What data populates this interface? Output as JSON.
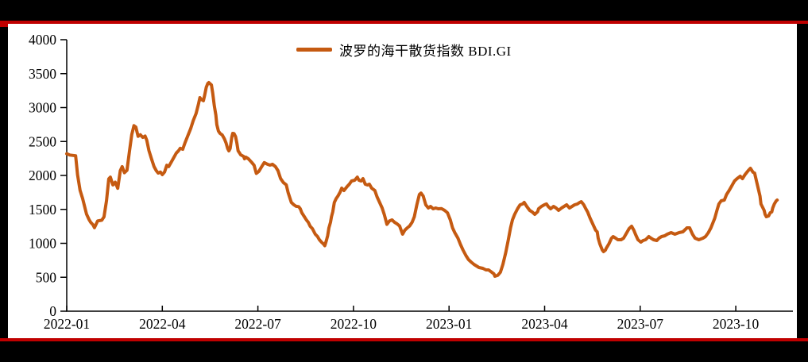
{
  "colors": {
    "frame_background": "#000000",
    "border_red": "#C00000",
    "panel_background": "#FFFFFF",
    "axis": "#000000",
    "text": "#000000",
    "series_orange": "#C55A11"
  },
  "legend": {
    "label": "波罗的海干散货指数 BDI.GI"
  },
  "chart_data": {
    "type": "line",
    "title": "",
    "xlabel": "",
    "ylabel": "",
    "grid": false,
    "legend_position": "top-center",
    "ylim": [
      0,
      4000
    ],
    "y_ticks": [
      0,
      500,
      1000,
      1500,
      2000,
      2500,
      3000,
      3500,
      4000
    ],
    "xlim_months": [
      0,
      22.8
    ],
    "x_unit": "months since 2022-01",
    "x_tick_months": [
      0,
      3,
      6,
      9,
      12,
      15,
      18,
      21
    ],
    "x_tick_labels": [
      "2022-01",
      "2022-04",
      "2022-07",
      "2022-10",
      "2023-01",
      "2023-04",
      "2023-07",
      "2023-10"
    ],
    "series": [
      {
        "name": "波罗的海干散货指数 BDI.GI",
        "color": "#C55A11",
        "points": [
          [
            0.0,
            2320
          ],
          [
            0.1,
            2300
          ],
          [
            0.28,
            2290
          ],
          [
            0.34,
            2010
          ],
          [
            0.42,
            1780
          ],
          [
            0.5,
            1660
          ],
          [
            0.62,
            1430
          ],
          [
            0.7,
            1350
          ],
          [
            0.75,
            1310
          ],
          [
            0.82,
            1275
          ],
          [
            0.87,
            1230
          ],
          [
            0.97,
            1330
          ],
          [
            1.1,
            1340
          ],
          [
            1.17,
            1390
          ],
          [
            1.25,
            1630
          ],
          [
            1.32,
            1950
          ],
          [
            1.37,
            1975
          ],
          [
            1.45,
            1860
          ],
          [
            1.52,
            1900
          ],
          [
            1.6,
            1810
          ],
          [
            1.68,
            2070
          ],
          [
            1.74,
            2130
          ],
          [
            1.81,
            2040
          ],
          [
            1.89,
            2075
          ],
          [
            1.97,
            2360
          ],
          [
            2.04,
            2600
          ],
          [
            2.11,
            2733
          ],
          [
            2.17,
            2712
          ],
          [
            2.24,
            2577
          ],
          [
            2.31,
            2600
          ],
          [
            2.39,
            2560
          ],
          [
            2.46,
            2580
          ],
          [
            2.51,
            2520
          ],
          [
            2.58,
            2365
          ],
          [
            2.66,
            2245
          ],
          [
            2.74,
            2130
          ],
          [
            2.81,
            2070
          ],
          [
            2.87,
            2035
          ],
          [
            2.94,
            2050
          ],
          [
            3.0,
            2012
          ],
          [
            3.07,
            2050
          ],
          [
            3.14,
            2150
          ],
          [
            3.2,
            2130
          ],
          [
            3.27,
            2187
          ],
          [
            3.34,
            2246
          ],
          [
            3.44,
            2330
          ],
          [
            3.51,
            2365
          ],
          [
            3.56,
            2400
          ],
          [
            3.64,
            2386
          ],
          [
            3.71,
            2480
          ],
          [
            3.81,
            2596
          ],
          [
            3.89,
            2690
          ],
          [
            3.97,
            2807
          ],
          [
            4.06,
            2912
          ],
          [
            4.13,
            3041
          ],
          [
            4.18,
            3146
          ],
          [
            4.22,
            3123
          ],
          [
            4.29,
            3100
          ],
          [
            4.33,
            3181
          ],
          [
            4.38,
            3298
          ],
          [
            4.43,
            3357
          ],
          [
            4.46,
            3368
          ],
          [
            4.54,
            3333
          ],
          [
            4.58,
            3216
          ],
          [
            4.63,
            3029
          ],
          [
            4.68,
            2889
          ],
          [
            4.71,
            2749
          ],
          [
            4.76,
            2655
          ],
          [
            4.81,
            2620
          ],
          [
            4.88,
            2596
          ],
          [
            4.95,
            2538
          ],
          [
            5.0,
            2480
          ],
          [
            5.05,
            2398
          ],
          [
            5.09,
            2363
          ],
          [
            5.13,
            2398
          ],
          [
            5.18,
            2561
          ],
          [
            5.21,
            2620
          ],
          [
            5.25,
            2618
          ],
          [
            5.3,
            2573
          ],
          [
            5.34,
            2480
          ],
          [
            5.38,
            2363
          ],
          [
            5.43,
            2328
          ],
          [
            5.46,
            2304
          ],
          [
            5.55,
            2281
          ],
          [
            5.58,
            2246
          ],
          [
            5.62,
            2269
          ],
          [
            5.7,
            2246
          ],
          [
            5.8,
            2195
          ],
          [
            5.88,
            2150
          ],
          [
            5.95,
            2030
          ],
          [
            6.03,
            2060
          ],
          [
            6.12,
            2130
          ],
          [
            6.2,
            2190
          ],
          [
            6.3,
            2165
          ],
          [
            6.38,
            2152
          ],
          [
            6.46,
            2165
          ],
          [
            6.55,
            2130
          ],
          [
            6.63,
            2070
          ],
          [
            6.71,
            1955
          ],
          [
            6.8,
            1895
          ],
          [
            6.89,
            1862
          ],
          [
            6.95,
            1745
          ],
          [
            7.05,
            1602
          ],
          [
            7.13,
            1567
          ],
          [
            7.2,
            1545
          ],
          [
            7.28,
            1540
          ],
          [
            7.33,
            1510
          ],
          [
            7.38,
            1450
          ],
          [
            7.46,
            1392
          ],
          [
            7.52,
            1345
          ],
          [
            7.58,
            1310
          ],
          [
            7.64,
            1251
          ],
          [
            7.71,
            1216
          ],
          [
            7.8,
            1134
          ],
          [
            7.87,
            1100
          ],
          [
            7.93,
            1053
          ],
          [
            8.0,
            1015
          ],
          [
            8.06,
            990
          ],
          [
            8.1,
            965
          ],
          [
            8.15,
            1041
          ],
          [
            8.19,
            1111
          ],
          [
            8.23,
            1228
          ],
          [
            8.28,
            1310
          ],
          [
            8.31,
            1392
          ],
          [
            8.35,
            1462
          ],
          [
            8.4,
            1602
          ],
          [
            8.46,
            1661
          ],
          [
            8.51,
            1696
          ],
          [
            8.58,
            1754
          ],
          [
            8.63,
            1813
          ],
          [
            8.7,
            1778
          ],
          [
            8.8,
            1836
          ],
          [
            8.87,
            1871
          ],
          [
            8.94,
            1918
          ],
          [
            9.04,
            1930
          ],
          [
            9.12,
            1976
          ],
          [
            9.17,
            1930
          ],
          [
            9.24,
            1918
          ],
          [
            9.3,
            1953
          ],
          [
            9.37,
            1871
          ],
          [
            9.44,
            1860
          ],
          [
            9.5,
            1871
          ],
          [
            9.57,
            1813
          ],
          [
            9.67,
            1778
          ],
          [
            9.74,
            1684
          ],
          [
            9.82,
            1602
          ],
          [
            9.9,
            1520
          ],
          [
            9.97,
            1420
          ],
          [
            10.05,
            1280
          ],
          [
            10.13,
            1330
          ],
          [
            10.21,
            1345
          ],
          [
            10.29,
            1310
          ],
          [
            10.37,
            1287
          ],
          [
            10.45,
            1255
          ],
          [
            10.54,
            1134
          ],
          [
            10.61,
            1193
          ],
          [
            10.69,
            1228
          ],
          [
            10.76,
            1255
          ],
          [
            10.84,
            1310
          ],
          [
            10.91,
            1392
          ],
          [
            10.99,
            1570
          ],
          [
            11.07,
            1720
          ],
          [
            11.12,
            1740
          ],
          [
            11.19,
            1696
          ],
          [
            11.27,
            1567
          ],
          [
            11.35,
            1521
          ],
          [
            11.42,
            1544
          ],
          [
            11.5,
            1509
          ],
          [
            11.58,
            1521
          ],
          [
            11.66,
            1509
          ],
          [
            11.76,
            1512
          ],
          [
            11.86,
            1485
          ],
          [
            11.95,
            1450
          ],
          [
            12.04,
            1345
          ],
          [
            12.11,
            1228
          ],
          [
            12.18,
            1158
          ],
          [
            12.28,
            1076
          ],
          [
            12.36,
            982
          ],
          [
            12.44,
            901
          ],
          [
            12.53,
            819
          ],
          [
            12.61,
            760
          ],
          [
            12.69,
            725
          ],
          [
            12.78,
            690
          ],
          [
            12.86,
            667
          ],
          [
            12.94,
            643
          ],
          [
            13.06,
            632
          ],
          [
            13.16,
            608
          ],
          [
            13.24,
            608
          ],
          [
            13.31,
            585
          ],
          [
            13.41,
            550
          ],
          [
            13.44,
            515
          ],
          [
            13.53,
            530
          ],
          [
            13.61,
            573
          ],
          [
            13.69,
            690
          ],
          [
            13.78,
            866
          ],
          [
            13.86,
            1053
          ],
          [
            13.93,
            1228
          ],
          [
            13.99,
            1345
          ],
          [
            14.06,
            1427
          ],
          [
            14.15,
            1509
          ],
          [
            14.23,
            1567
          ],
          [
            14.31,
            1580
          ],
          [
            14.36,
            1602
          ],
          [
            14.44,
            1544
          ],
          [
            14.53,
            1485
          ],
          [
            14.61,
            1462
          ],
          [
            14.69,
            1427
          ],
          [
            14.78,
            1465
          ],
          [
            14.81,
            1510
          ],
          [
            14.9,
            1544
          ],
          [
            14.99,
            1567
          ],
          [
            15.06,
            1580
          ],
          [
            15.11,
            1544
          ],
          [
            15.19,
            1509
          ],
          [
            15.28,
            1544
          ],
          [
            15.36,
            1520
          ],
          [
            15.44,
            1485
          ],
          [
            15.53,
            1521
          ],
          [
            15.61,
            1544
          ],
          [
            15.69,
            1567
          ],
          [
            15.78,
            1521
          ],
          [
            15.86,
            1544
          ],
          [
            15.94,
            1567
          ],
          [
            16.03,
            1580
          ],
          [
            16.1,
            1602
          ],
          [
            16.15,
            1614
          ],
          [
            16.23,
            1567
          ],
          [
            16.28,
            1521
          ],
          [
            16.35,
            1462
          ],
          [
            16.43,
            1368
          ],
          [
            16.52,
            1275
          ],
          [
            16.6,
            1193
          ],
          [
            16.65,
            1170
          ],
          [
            16.68,
            1076
          ],
          [
            16.73,
            994
          ],
          [
            16.78,
            936
          ],
          [
            16.81,
            901
          ],
          [
            16.85,
            877
          ],
          [
            16.91,
            901
          ],
          [
            16.93,
            924
          ],
          [
            17.02,
            994
          ],
          [
            17.1,
            1076
          ],
          [
            17.15,
            1099
          ],
          [
            17.23,
            1076
          ],
          [
            17.3,
            1053
          ],
          [
            17.4,
            1053
          ],
          [
            17.48,
            1076
          ],
          [
            17.55,
            1134
          ],
          [
            17.65,
            1216
          ],
          [
            17.73,
            1251
          ],
          [
            17.8,
            1193
          ],
          [
            17.85,
            1134
          ],
          [
            17.93,
            1053
          ],
          [
            18.02,
            1018
          ],
          [
            18.09,
            1041
          ],
          [
            18.17,
            1053
          ],
          [
            18.27,
            1099
          ],
          [
            18.34,
            1076
          ],
          [
            18.42,
            1053
          ],
          [
            18.52,
            1041
          ],
          [
            18.59,
            1076
          ],
          [
            18.67,
            1099
          ],
          [
            18.77,
            1111
          ],
          [
            18.85,
            1134
          ],
          [
            18.97,
            1158
          ],
          [
            19.09,
            1134
          ],
          [
            19.22,
            1158
          ],
          [
            19.34,
            1170
          ],
          [
            19.47,
            1228
          ],
          [
            19.55,
            1228
          ],
          [
            19.64,
            1134
          ],
          [
            19.72,
            1076
          ],
          [
            19.84,
            1053
          ],
          [
            19.97,
            1076
          ],
          [
            20.05,
            1099
          ],
          [
            20.14,
            1158
          ],
          [
            20.22,
            1228
          ],
          [
            20.34,
            1368
          ],
          [
            20.41,
            1485
          ],
          [
            20.47,
            1579
          ],
          [
            20.54,
            1626
          ],
          [
            20.64,
            1637
          ],
          [
            20.71,
            1719
          ],
          [
            20.79,
            1778
          ],
          [
            20.89,
            1860
          ],
          [
            20.96,
            1918
          ],
          [
            21.04,
            1953
          ],
          [
            21.14,
            1988
          ],
          [
            21.21,
            1953
          ],
          [
            21.29,
            2012
          ],
          [
            21.39,
            2070
          ],
          [
            21.46,
            2105
          ],
          [
            21.54,
            2047
          ],
          [
            21.59,
            2035
          ],
          [
            21.66,
            1895
          ],
          [
            21.76,
            1696
          ],
          [
            21.79,
            1579
          ],
          [
            21.89,
            1485
          ],
          [
            21.92,
            1427
          ],
          [
            21.96,
            1392
          ],
          [
            22.03,
            1404
          ],
          [
            22.08,
            1450
          ],
          [
            22.13,
            1462
          ],
          [
            22.16,
            1521
          ],
          [
            22.21,
            1579
          ],
          [
            22.27,
            1626
          ],
          [
            22.3,
            1637
          ]
        ]
      }
    ]
  }
}
